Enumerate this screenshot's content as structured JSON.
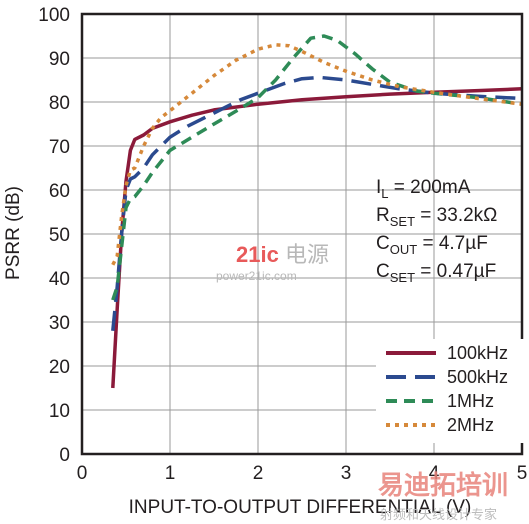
{
  "chart_data": {
    "type": "line",
    "xlabel": "INPUT-TO-OUTPUT DIFFERENTIAL (V)",
    "ylabel": "PSRR (dB)",
    "xlim": [
      0,
      5
    ],
    "ylim": [
      0,
      100
    ],
    "xticks": [
      "0",
      "1",
      "2",
      "3",
      "4",
      "5"
    ],
    "yticks": [
      "0",
      "10",
      "20",
      "30",
      "40",
      "50",
      "60",
      "70",
      "80",
      "90",
      "100"
    ],
    "grid": true,
    "legend_position": "bottom-right",
    "conditions": [
      {
        "main": "I",
        "sub": "L",
        "rest": " = 200mA"
      },
      {
        "main": "R",
        "sub": "SET",
        "rest": " = 33.2kΩ"
      },
      {
        "main": "C",
        "sub": "OUT",
        "rest": " = 4.7µF"
      },
      {
        "main": "C",
        "sub": "SET",
        "rest": " = 0.47µF"
      }
    ],
    "series": [
      {
        "name": "100kHz",
        "color": "#8b1a3a",
        "dash": "solid",
        "points": [
          [
            0.35,
            15
          ],
          [
            0.4,
            33
          ],
          [
            0.45,
            50
          ],
          [
            0.5,
            62
          ],
          [
            0.55,
            69
          ],
          [
            0.6,
            71.5
          ],
          [
            0.7,
            72.5
          ],
          [
            0.8,
            74
          ],
          [
            1.0,
            75.5
          ],
          [
            1.25,
            77
          ],
          [
            1.5,
            78.2
          ],
          [
            2.0,
            79.5
          ],
          [
            2.5,
            80.5
          ],
          [
            3.0,
            81.2
          ],
          [
            3.5,
            81.8
          ],
          [
            4.0,
            82.2
          ],
          [
            4.5,
            82.6
          ],
          [
            5.0,
            83
          ]
        ]
      },
      {
        "name": "500kHz",
        "color": "#2b4a8f",
        "dash": "long",
        "points": [
          [
            0.35,
            28
          ],
          [
            0.4,
            38
          ],
          [
            0.45,
            50
          ],
          [
            0.5,
            60
          ],
          [
            0.55,
            62.5
          ],
          [
            0.6,
            63
          ],
          [
            0.7,
            65
          ],
          [
            0.8,
            68
          ],
          [
            1.0,
            72
          ],
          [
            1.2,
            74.5
          ],
          [
            1.5,
            77.5
          ],
          [
            1.8,
            80.5
          ],
          [
            2.0,
            82
          ],
          [
            2.3,
            84.2
          ],
          [
            2.5,
            85.3
          ],
          [
            2.7,
            85.6
          ],
          [
            3.0,
            85
          ],
          [
            3.3,
            84
          ],
          [
            3.6,
            83
          ],
          [
            4.0,
            82
          ],
          [
            4.5,
            81.3
          ],
          [
            5.0,
            80.8
          ]
        ]
      },
      {
        "name": "1MHz",
        "color": "#2e8b57",
        "dash": "medium",
        "points": [
          [
            0.35,
            35
          ],
          [
            0.4,
            38
          ],
          [
            0.45,
            47
          ],
          [
            0.5,
            56
          ],
          [
            0.55,
            58
          ],
          [
            0.6,
            58.5
          ],
          [
            0.7,
            61
          ],
          [
            0.8,
            64
          ],
          [
            1.0,
            69
          ],
          [
            1.25,
            72
          ],
          [
            1.5,
            75
          ],
          [
            1.8,
            78.5
          ],
          [
            2.0,
            81
          ],
          [
            2.2,
            85
          ],
          [
            2.4,
            90
          ],
          [
            2.6,
            94.5
          ],
          [
            2.75,
            95
          ],
          [
            2.9,
            94
          ],
          [
            3.1,
            91
          ],
          [
            3.3,
            87.5
          ],
          [
            3.5,
            84.5
          ],
          [
            3.8,
            82.5
          ],
          [
            4.0,
            82
          ],
          [
            4.5,
            81
          ],
          [
            5.0,
            79.5
          ]
        ]
      },
      {
        "name": "2MHz",
        "color": "#d6893a",
        "dash": "dotted",
        "points": [
          [
            0.35,
            43
          ],
          [
            0.4,
            45
          ],
          [
            0.45,
            54
          ],
          [
            0.5,
            61
          ],
          [
            0.55,
            64.5
          ],
          [
            0.6,
            65
          ],
          [
            0.7,
            70
          ],
          [
            0.8,
            74
          ],
          [
            0.9,
            76.5
          ],
          [
            1.0,
            78
          ],
          [
            1.25,
            82
          ],
          [
            1.5,
            86
          ],
          [
            1.75,
            89.5
          ],
          [
            2.0,
            92
          ],
          [
            2.2,
            93
          ],
          [
            2.35,
            92.8
          ],
          [
            2.5,
            91.5
          ],
          [
            2.75,
            89
          ],
          [
            3.0,
            87
          ],
          [
            3.3,
            85
          ],
          [
            3.6,
            83.5
          ],
          [
            4.0,
            82.2
          ],
          [
            4.5,
            80.8
          ],
          [
            5.0,
            79.5
          ]
        ]
      }
    ]
  },
  "watermark": {
    "logo_21ic": "21ic",
    "logo_cn": "电源",
    "domain": "power21ic.com",
    "brand_cn": "易迪拓培训",
    "tagline_cn": "射频和天线设计专家"
  }
}
